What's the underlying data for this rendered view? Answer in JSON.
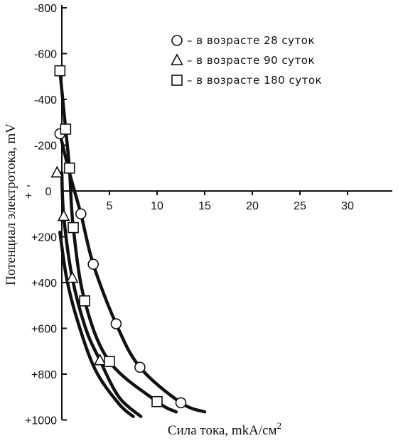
{
  "chart_data": {
    "type": "line",
    "xlabel": "Сила тока, mkA/см",
    "xlabel_sup": "2",
    "ylabel": "Потенциал электротока, mV",
    "xlim": [
      0,
      34
    ],
    "ylim": [
      -800,
      1000
    ],
    "x_ticks": [
      {
        "value": 5,
        "label": "5"
      },
      {
        "value": 10,
        "label": "10"
      },
      {
        "value": 15,
        "label": "15"
      },
      {
        "value": 20,
        "label": "20"
      },
      {
        "value": 25,
        "label": "25"
      },
      {
        "value": 30,
        "label": "30"
      }
    ],
    "y_ticks": [
      {
        "value": -800,
        "label": "-800"
      },
      {
        "value": -600,
        "label": "-600"
      },
      {
        "value": -400,
        "label": "-400"
      },
      {
        "value": -200,
        "label": "-200"
      },
      {
        "value": 0,
        "label": "0"
      },
      {
        "value": 200,
        "label": "+200"
      },
      {
        "value": 400,
        "label": "+400"
      },
      {
        "value": 600,
        "label": "+600"
      },
      {
        "value": 800,
        "label": "+800"
      },
      {
        "value": 1000,
        "label": "+1000"
      }
    ],
    "zero_side_labels": {
      "minus": "-",
      "plus": "+"
    },
    "legend_position": "top-right",
    "series": [
      {
        "name": "– в возрасте 28 суток",
        "marker": "circle",
        "points": [
          [
            -0.2,
            -250
          ],
          [
            2,
            100
          ],
          [
            3.3,
            320
          ],
          [
            5.7,
            580
          ],
          [
            8.2,
            770
          ],
          [
            12.5,
            925
          ]
        ],
        "curve": [
          [
            -0.2,
            -250
          ],
          [
            0.8,
            -80
          ],
          [
            2,
            100
          ],
          [
            3.3,
            320
          ],
          [
            5.7,
            580
          ],
          [
            8.2,
            770
          ],
          [
            12.5,
            925
          ],
          [
            15,
            965
          ]
        ]
      },
      {
        "name": "– в возрасте 90 суток",
        "marker": "triangle",
        "points": [
          [
            -0.5,
            -80
          ],
          [
            0.2,
            110
          ],
          [
            1.1,
            380
          ],
          [
            4,
            740
          ]
        ],
        "curve": [
          [
            0,
            -80
          ],
          [
            0.2,
            110
          ],
          [
            1.1,
            380
          ],
          [
            2.5,
            600
          ],
          [
            4,
            740
          ],
          [
            6,
            900
          ],
          [
            8.3,
            985
          ]
        ]
      },
      {
        "name": "– в возрасте 180 суток",
        "marker": "square",
        "points": [
          [
            -0.2,
            -525
          ],
          [
            0.4,
            -270
          ],
          [
            0.8,
            -100
          ],
          [
            1.2,
            160
          ],
          [
            2.4,
            480
          ],
          [
            5,
            745
          ],
          [
            10,
            920
          ]
        ],
        "curve": [
          [
            -0.2,
            -525
          ],
          [
            0.4,
            -270
          ],
          [
            0.8,
            -100
          ],
          [
            1.2,
            160
          ],
          [
            2.4,
            480
          ],
          [
            5,
            745
          ],
          [
            10,
            920
          ],
          [
            12,
            965
          ]
        ]
      }
    ],
    "extra_curve": [
      [
        -0.2,
        180
      ],
      [
        0.5,
        380
      ],
      [
        1.6,
        560
      ],
      [
        3.5,
        780
      ],
      [
        6,
        930
      ],
      [
        7.5,
        985
      ]
    ]
  }
}
